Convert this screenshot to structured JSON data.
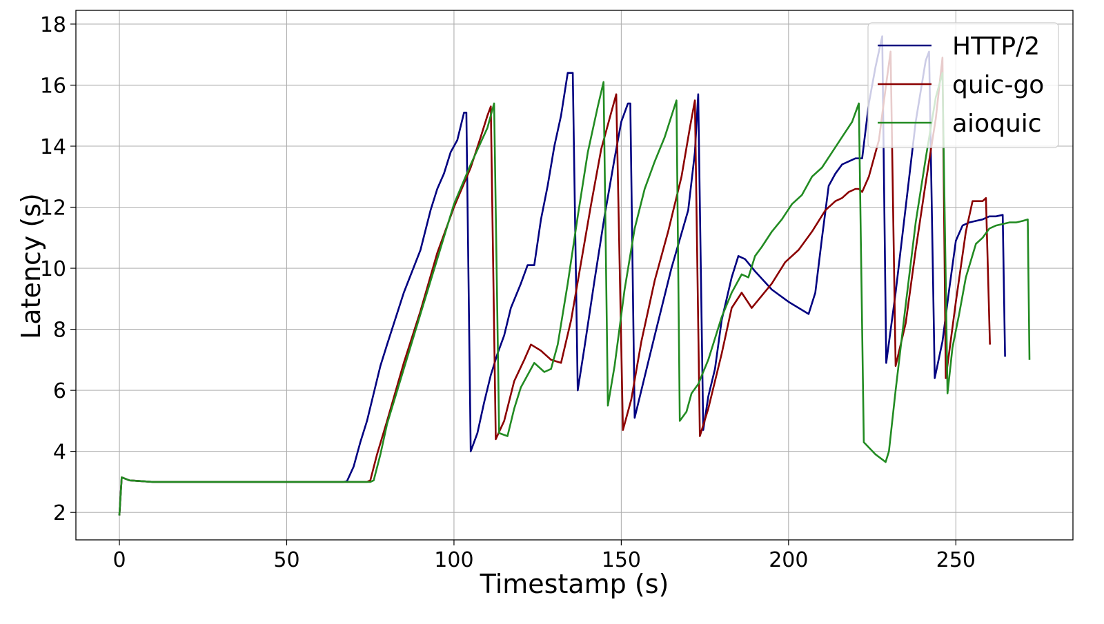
{
  "chart_data": {
    "type": "line",
    "title": "",
    "xlabel": "Timestamp (s)",
    "ylabel": "Latency (s)",
    "xlim": [
      -13,
      285
    ],
    "ylim": [
      1.1,
      18.45
    ],
    "xticks": [
      0,
      50,
      100,
      150,
      200,
      250
    ],
    "yticks": [
      2,
      4,
      6,
      8,
      10,
      12,
      14,
      16,
      18
    ],
    "grid": true,
    "legend_position": "top-right",
    "series": [
      {
        "name": "HTTP/2",
        "color": "#000080",
        "x": [
          0,
          0.7,
          3,
          10,
          30,
          50,
          67,
          68,
          70,
          72,
          74,
          76,
          78,
          80,
          85,
          90,
          93,
          95,
          97,
          99,
          101,
          103,
          103.7,
          105,
          107,
          109,
          111,
          113,
          115,
          117,
          120,
          122,
          124,
          126,
          128,
          130,
          132,
          134,
          135.5,
          137,
          139,
          142,
          145,
          148,
          150,
          152,
          152.7,
          154,
          156,
          160,
          165,
          170,
          172,
          173,
          174.5,
          176,
          178,
          180,
          183,
          185,
          187,
          190,
          195,
          200,
          206,
          208,
          210,
          212,
          214,
          216,
          218,
          220,
          222,
          224,
          226,
          228,
          229.2,
          232,
          235,
          238,
          241,
          242,
          243.7,
          246,
          248,
          250,
          252,
          254,
          256,
          258,
          260,
          262,
          264,
          264.7
        ],
        "y": [
          1.9,
          3.15,
          3.05,
          3.0,
          3.0,
          3.0,
          3.0,
          3.02,
          3.5,
          4.3,
          5.0,
          5.9,
          6.8,
          7.5,
          9.2,
          10.6,
          11.9,
          12.6,
          13.1,
          13.8,
          14.2,
          15.1,
          15.1,
          4.0,
          4.6,
          5.6,
          6.5,
          7.2,
          7.8,
          8.7,
          9.5,
          10.1,
          10.1,
          11.6,
          12.7,
          14.0,
          15.0,
          16.4,
          16.4,
          6.0,
          7.4,
          9.6,
          11.7,
          13.6,
          14.8,
          15.4,
          15.4,
          5.1,
          6.0,
          7.8,
          10.0,
          11.9,
          13.8,
          15.7,
          4.7,
          5.8,
          6.7,
          8.3,
          9.7,
          10.4,
          10.3,
          9.9,
          9.3,
          8.9,
          8.5,
          9.2,
          11.0,
          12.7,
          13.1,
          13.4,
          13.5,
          13.6,
          13.6,
          15.4,
          16.6,
          17.6,
          6.9,
          9.2,
          12.0,
          14.8,
          16.8,
          17.1,
          6.4,
          7.6,
          9.3,
          10.9,
          11.4,
          11.5,
          11.55,
          11.6,
          11.7,
          11.7,
          11.75,
          7.1
        ]
      },
      {
        "name": "quic-go",
        "color": "#8b0000",
        "x": [
          0,
          0.7,
          3,
          10,
          30,
          50,
          74,
          75,
          77,
          80,
          85,
          90,
          95,
          100,
          105,
          108,
          110,
          111,
          112.5,
          115,
          118,
          121,
          123,
          126,
          129,
          132,
          135,
          138,
          141,
          144,
          147,
          148.5,
          150.5,
          153,
          156,
          160,
          164,
          168,
          170.5,
          172,
          173.5,
          176,
          180,
          183,
          186,
          189,
          192,
          195,
          199,
          203,
          207,
          211,
          214,
          216,
          218,
          220,
          221,
          222,
          224,
          227,
          229,
          230.5,
          232,
          235,
          238,
          241,
          244,
          246,
          247,
          250,
          253,
          255,
          258,
          259,
          260.2
        ],
        "y": [
          1.9,
          3.15,
          3.05,
          3.0,
          3.0,
          3.0,
          3.0,
          3.05,
          3.9,
          5.0,
          6.9,
          8.6,
          10.5,
          12.0,
          13.3,
          14.3,
          15.0,
          15.3,
          4.4,
          5.0,
          6.3,
          7.0,
          7.5,
          7.3,
          7.0,
          6.9,
          8.3,
          10.2,
          12.1,
          13.9,
          15.1,
          15.7,
          4.7,
          5.7,
          7.6,
          9.6,
          11.2,
          13.0,
          14.6,
          15.5,
          4.5,
          5.4,
          7.2,
          8.7,
          9.2,
          8.7,
          9.1,
          9.5,
          10.2,
          10.6,
          11.2,
          11.9,
          12.2,
          12.3,
          12.5,
          12.6,
          12.6,
          12.5,
          13.0,
          14.2,
          15.9,
          17.1,
          6.8,
          8.2,
          10.6,
          12.8,
          14.9,
          16.9,
          6.4,
          8.9,
          11.2,
          12.2,
          12.2,
          12.3,
          7.5
        ]
      },
      {
        "name": "aioquic",
        "color": "#228b22",
        "x": [
          0,
          0.7,
          3,
          10,
          30,
          50,
          75,
          76,
          78,
          80,
          85,
          90,
          95,
          100,
          105,
          110,
          112,
          113.5,
          116,
          118,
          120,
          122,
          124,
          127,
          129,
          131,
          134,
          137,
          140,
          143,
          144.7,
          146,
          148,
          151,
          154,
          157,
          160,
          163,
          166.5,
          167.5,
          169.5,
          171,
          173,
          176,
          180,
          183,
          186,
          188,
          190,
          192,
          195,
          198,
          201,
          204,
          207,
          210,
          213,
          216,
          219,
          221,
          222.5,
          226,
          229,
          230,
          232,
          235,
          238,
          241,
          244,
          246,
          247.5,
          249,
          251,
          253,
          256,
          258,
          260,
          262,
          264,
          266,
          268,
          270,
          271.5,
          272
        ],
        "y": [
          1.9,
          3.15,
          3.05,
          3.0,
          3.0,
          3.0,
          3.0,
          3.05,
          3.9,
          4.9,
          6.7,
          8.5,
          10.3,
          12.1,
          13.4,
          14.6,
          15.4,
          4.6,
          4.5,
          5.4,
          6.1,
          6.5,
          6.9,
          6.6,
          6.7,
          7.5,
          9.5,
          11.7,
          13.8,
          15.3,
          16.1,
          5.5,
          6.8,
          9.3,
          11.3,
          12.6,
          13.5,
          14.3,
          15.5,
          5.0,
          5.3,
          5.9,
          6.2,
          7.0,
          8.4,
          9.2,
          9.8,
          9.7,
          10.4,
          10.7,
          11.2,
          11.6,
          12.1,
          12.4,
          13.0,
          13.3,
          13.8,
          14.3,
          14.8,
          15.4,
          4.3,
          3.9,
          3.65,
          4.0,
          6.0,
          8.8,
          11.5,
          13.6,
          15.6,
          16.4,
          5.9,
          7.4,
          8.5,
          9.7,
          10.8,
          11.0,
          11.3,
          11.4,
          11.45,
          11.5,
          11.5,
          11.55,
          11.6,
          7.0
        ]
      }
    ]
  }
}
